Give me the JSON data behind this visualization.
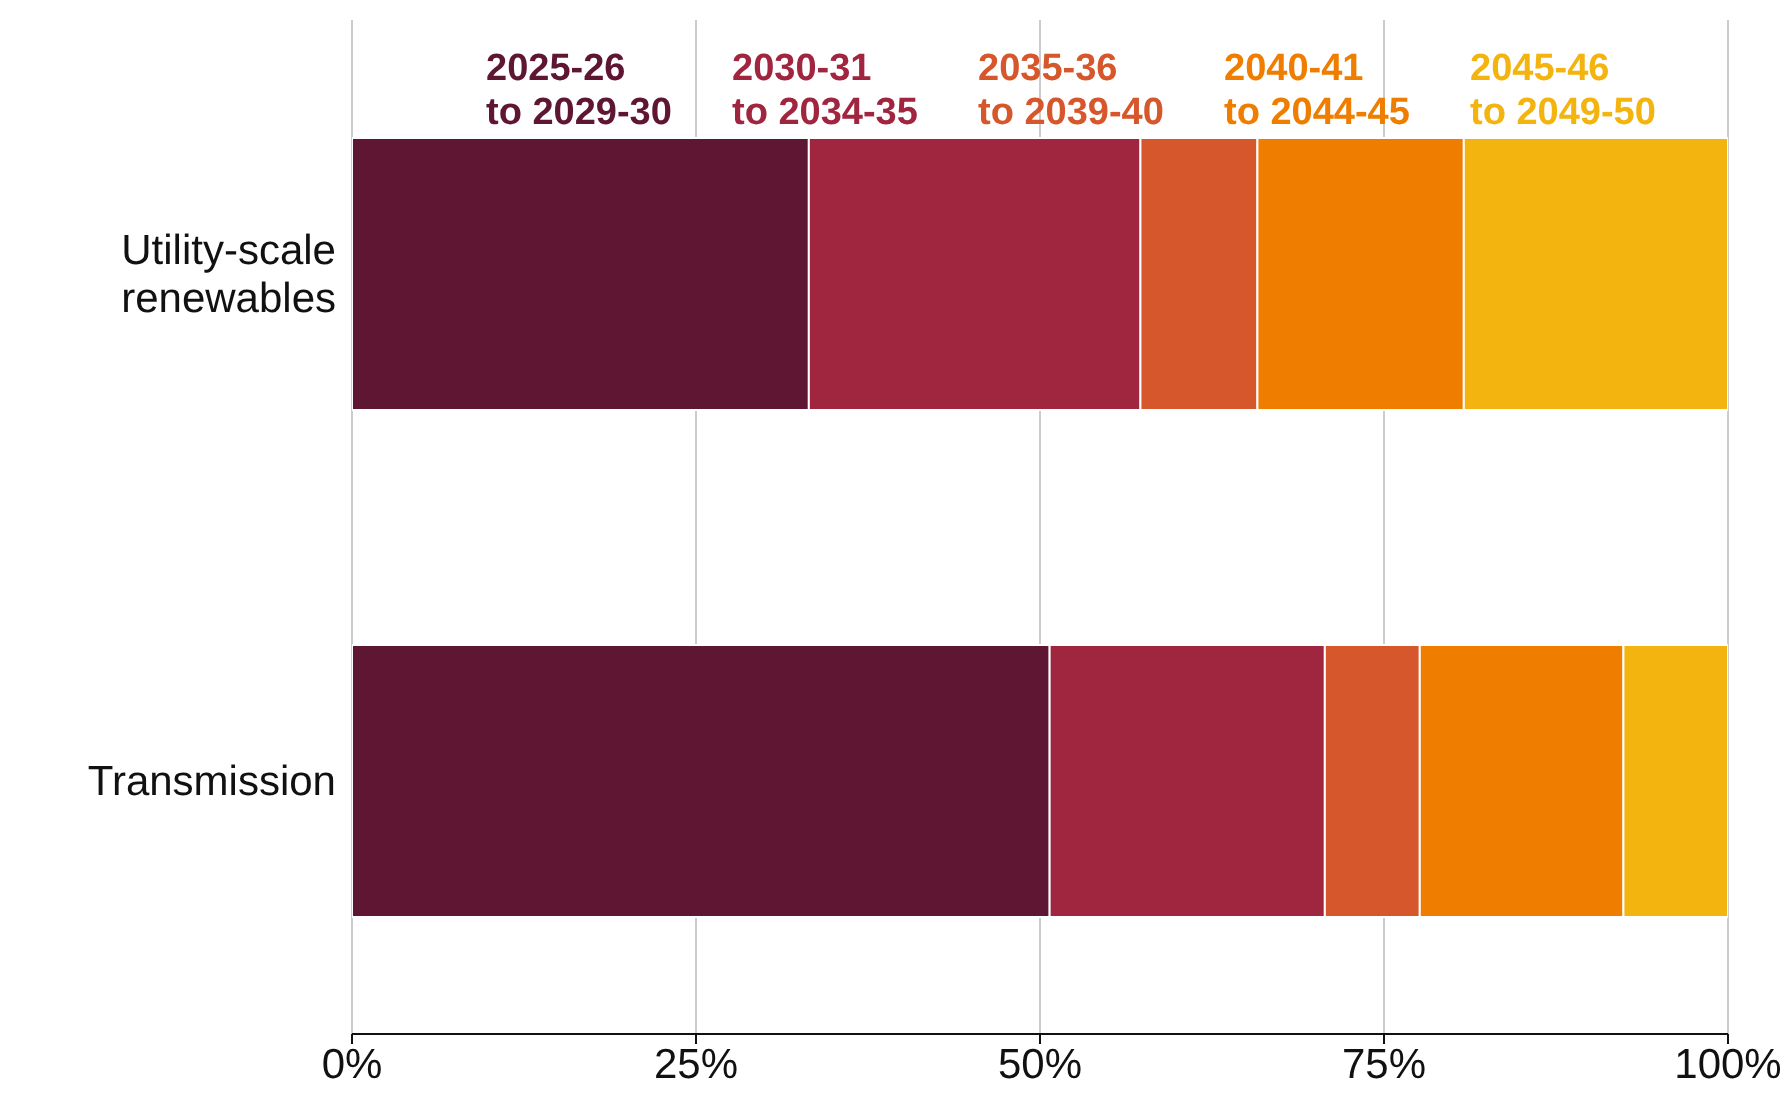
{
  "chart_data": {
    "type": "bar",
    "orientation": "horizontal",
    "stacked": true,
    "categories": [
      "Utility-scale renewables",
      "Transmission"
    ],
    "series": [
      {
        "name": "2025-26 to 2029-30",
        "color": "#5f1632",
        "values": [
          33.2,
          50.7
        ]
      },
      {
        "name": "2030-31 to 2034-35",
        "color": "#a0253f",
        "values": [
          24.1,
          20.0
        ]
      },
      {
        "name": "2035-36 to 2039-40",
        "color": "#d5572b",
        "values": [
          8.5,
          6.9
        ]
      },
      {
        "name": "2040-41 to 2044-45",
        "color": "#ef7d00",
        "values": [
          15.0,
          14.8
        ]
      },
      {
        "name": "2045-46 to 2049-50",
        "color": "#f4b410",
        "values": [
          19.2,
          7.6
        ]
      }
    ],
    "xlim": [
      0,
      100
    ],
    "xticks": [
      {
        "value": 0,
        "label": "0%"
      },
      {
        "value": 25,
        "label": "25%"
      },
      {
        "value": 50,
        "label": "50%"
      },
      {
        "value": 75,
        "label": "75%"
      },
      {
        "value": 100,
        "label": "100%"
      }
    ],
    "grid": "x",
    "legend": "top"
  }
}
